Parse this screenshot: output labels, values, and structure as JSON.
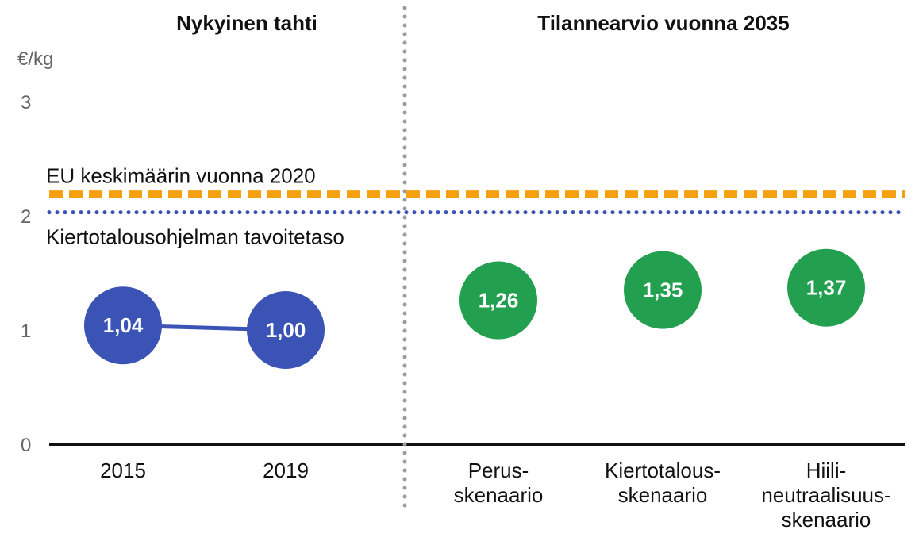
{
  "chart_data": {
    "type": "scatter",
    "unit_label": "€/kg",
    "ylim": [
      0,
      3
    ],
    "y_ticks": [
      "0",
      "1",
      "2",
      "3"
    ],
    "panels": [
      {
        "title": "Nykyinen tahti",
        "connected": true,
        "color": "#3A53B4",
        "points": [
          {
            "category": [
              "2015"
            ],
            "value": 1.04,
            "label": "1,04"
          },
          {
            "category": [
              "2019"
            ],
            "value": 1.0,
            "label": "1,00"
          }
        ]
      },
      {
        "title": "Tilannearvio vuonna 2035",
        "connected": false,
        "color": "#23A04F",
        "points": [
          {
            "category": [
              "Perus-",
              "skenaario"
            ],
            "value": 1.26,
            "label": "1,26"
          },
          {
            "category": [
              "Kiertotalous-",
              "skenaario"
            ],
            "value": 1.35,
            "label": "1,35"
          },
          {
            "category": [
              "Hiili-",
              "neutraalisuus-",
              "skenaario"
            ],
            "value": 1.37,
            "label": "1,37"
          }
        ]
      }
    ],
    "reference_lines": [
      {
        "label": "EU keskimäärin vuonna 2020",
        "value": 2.19,
        "color": "#F5A00F",
        "style": "dashed"
      },
      {
        "label": "Kiertotalousohjelman tavoitetaso",
        "value": 2.03,
        "color": "#3A53B4",
        "style": "dotted"
      }
    ],
    "grid": false
  }
}
